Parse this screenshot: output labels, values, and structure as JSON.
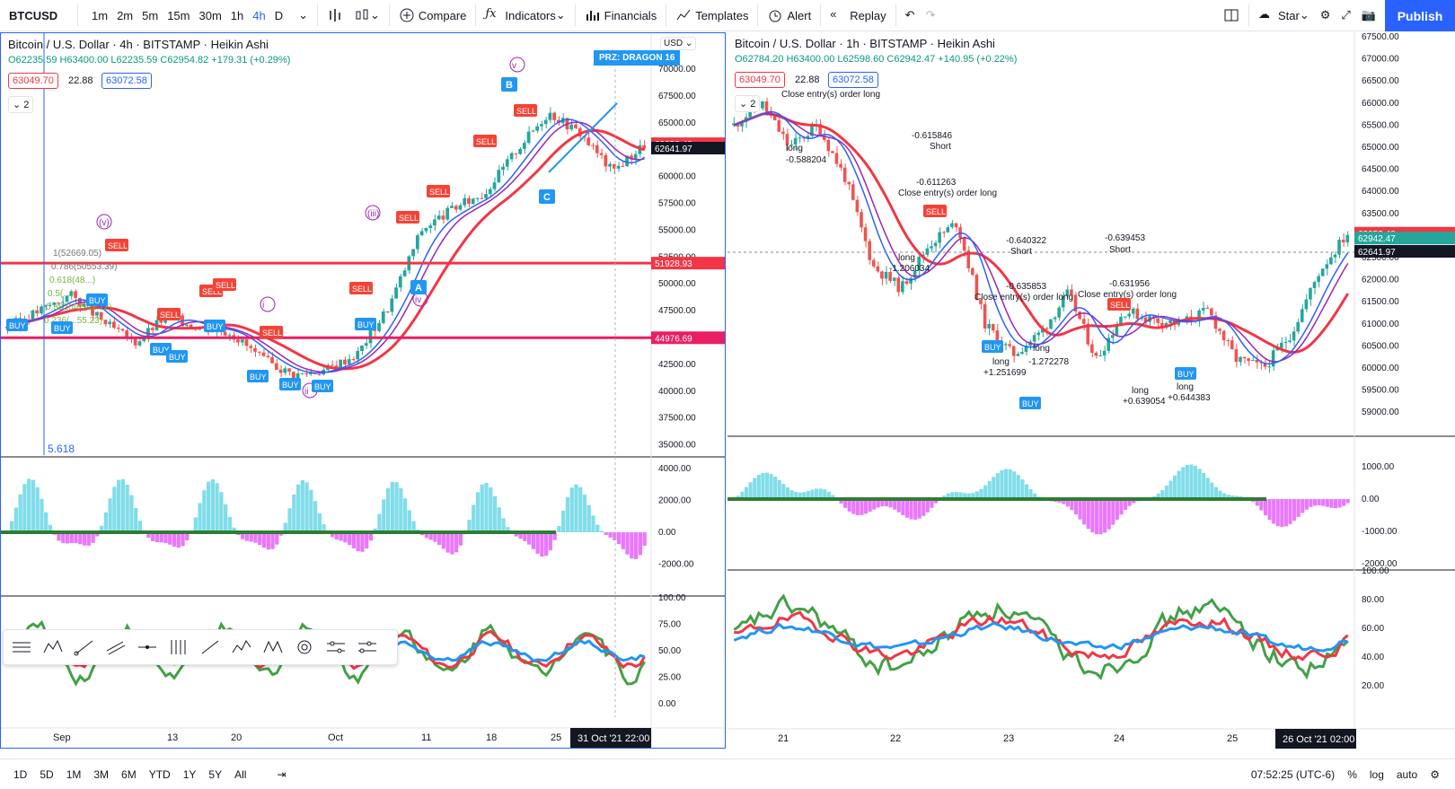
{
  "topbar": {
    "symbol": "BTCUSD",
    "intervals": [
      "1m",
      "2m",
      "5m",
      "15m",
      "30m",
      "1h",
      "4h",
      "D"
    ],
    "active_interval": "4h",
    "compare": "Compare",
    "indicators": "Indicators",
    "financials": "Financials",
    "templates": "Templates",
    "alert": "Alert",
    "replay": "Replay",
    "star": "Star",
    "publish": "Publish"
  },
  "left": {
    "title": "Bitcoin / U.S. Dollar · 4h · BITSTAMP · Heikin Ashi",
    "ohlc": "O62235.59 H63400.00 L62235.59 C62954.82 +179.31 (+0.29%)",
    "bid": "63049.70",
    "spread": "22.88",
    "ask": "63072.58",
    "layers": "2",
    "currency": "USD",
    "prz": "PRZ: DRAGON 16",
    "ylabels": [
      "70000.00",
      "67500.00",
      "65000.00",
      "62500.00",
      "60000.00",
      "57500.00",
      "55000.00",
      "52500.00",
      "50000.00",
      "47500.00",
      "45000.00",
      "42500.00",
      "40000.00",
      "37500.00",
      "35000.00"
    ],
    "price_tags": [
      "63053.48",
      "62641.97",
      "51928.93",
      "44976.69"
    ],
    "osc_labels": [
      "4000.00",
      "2000.00",
      "0.00",
      "-2000.00"
    ],
    "rsi_labels": [
      "100.00",
      "75.00",
      "50.00",
      "25.00",
      "0.00"
    ],
    "xlabels": [
      "Sep",
      "13",
      "20",
      "Oct",
      "11",
      "18",
      "25"
    ],
    "date_tag": "31 Oct '21  22:00",
    "fib": "5.618",
    "waves": [
      "(v)",
      "(iii)",
      "v",
      "i",
      "ii",
      "iv",
      "A",
      "B",
      "C"
    ],
    "fibs": [
      "1(52669.05)",
      "0.786(50553.39)",
      "0.618(48...)",
      "0.5(...)",
      "0.382(46591.12)",
      "0.236(...55.23)"
    ]
  },
  "right": {
    "title": "Bitcoin / U.S. Dollar · 1h · BITSTAMP · Heikin Ashi",
    "ohlc": "O62784.20 H63400.00 L62598.60 C62942.47 +140.95 (+0.22%)",
    "bid": "63049.70",
    "spread": "22.88",
    "ask": "63072.58",
    "layers": "2",
    "ylabels": [
      "67500.00",
      "67000.00",
      "66500.00",
      "66000.00",
      "65500.00",
      "65000.00",
      "64500.00",
      "64000.00",
      "63500.00",
      "63000.00",
      "62500.00",
      "62000.00",
      "61500.00",
      "61000.00",
      "60500.00",
      "60000.00",
      "59500.00",
      "59000.00"
    ],
    "price_tags": [
      "63053.48",
      "62942.47",
      "62641.97"
    ],
    "osc_labels": [
      "1000.00",
      "0.00",
      "-1000.00",
      "-2000.00"
    ],
    "rsi_labels": [
      "100.00",
      "80.00",
      "60.00",
      "40.00",
      "20.00"
    ],
    "xlabels": [
      "21",
      "22",
      "23",
      "24",
      "25"
    ],
    "date_tag": "26 Oct '21  02:00",
    "annotations": [
      {
        "t": "Close entry(s) order long"
      },
      {
        "t": "-0.615846"
      },
      {
        "t": "Short"
      },
      {
        "t": "-0.611263"
      },
      {
        "t": "Close entry(s) order long"
      },
      {
        "t": "-0.640322"
      },
      {
        "t": "Short"
      },
      {
        "t": "-0.639453"
      },
      {
        "t": "Short"
      },
      {
        "t": "-0.635853"
      },
      {
        "t": "Close entry(s) order long"
      },
      {
        "t": "-0.631956"
      },
      {
        "t": "Close entry(s) order long"
      },
      {
        "t": "long"
      },
      {
        "t": "-1.206034"
      },
      {
        "t": "long"
      },
      {
        "t": "+1.251699"
      },
      {
        "t": "long"
      },
      {
        "t": "-1.272278"
      },
      {
        "t": "long"
      },
      {
        "t": "+0.639054"
      },
      {
        "t": "long"
      },
      {
        "t": "+0.644383"
      },
      {
        "t": "long"
      },
      {
        "t": "-0.588204"
      }
    ]
  },
  "bottombar": {
    "ranges": [
      "1D",
      "5D",
      "1M",
      "3M",
      "6M",
      "YTD",
      "1Y",
      "5Y",
      "All"
    ],
    "time": "07:52:25 (UTC-6)",
    "pct": "%",
    "log": "log",
    "auto": "auto"
  },
  "chart_data": [
    {
      "type": "candlestick",
      "title": "Bitcoin / U.S. Dollar · 4h · BITSTAMP · Heikin Ashi",
      "x": [
        "Sep",
        "13",
        "20",
        "Oct",
        "11",
        "18",
        "25"
      ],
      "ylim": [
        35000,
        70000
      ],
      "close_approx": [
        47000,
        45000,
        46000,
        47500,
        44000,
        43000,
        41500,
        48000,
        55000,
        58000,
        62000,
        66000,
        61000,
        62954.82
      ],
      "hlines": [
        51928.93,
        44976.69
      ]
    },
    {
      "type": "candlestick",
      "title": "Bitcoin / U.S. Dollar · 1h · BITSTAMP · Heikin Ashi",
      "x": [
        "21",
        "22",
        "23",
        "24",
        "25"
      ],
      "ylim": [
        59000,
        67500
      ],
      "close_approx": [
        65000,
        64000,
        61000,
        63500,
        60500,
        61500,
        60000,
        61300,
        60000,
        62942.47
      ]
    }
  ]
}
